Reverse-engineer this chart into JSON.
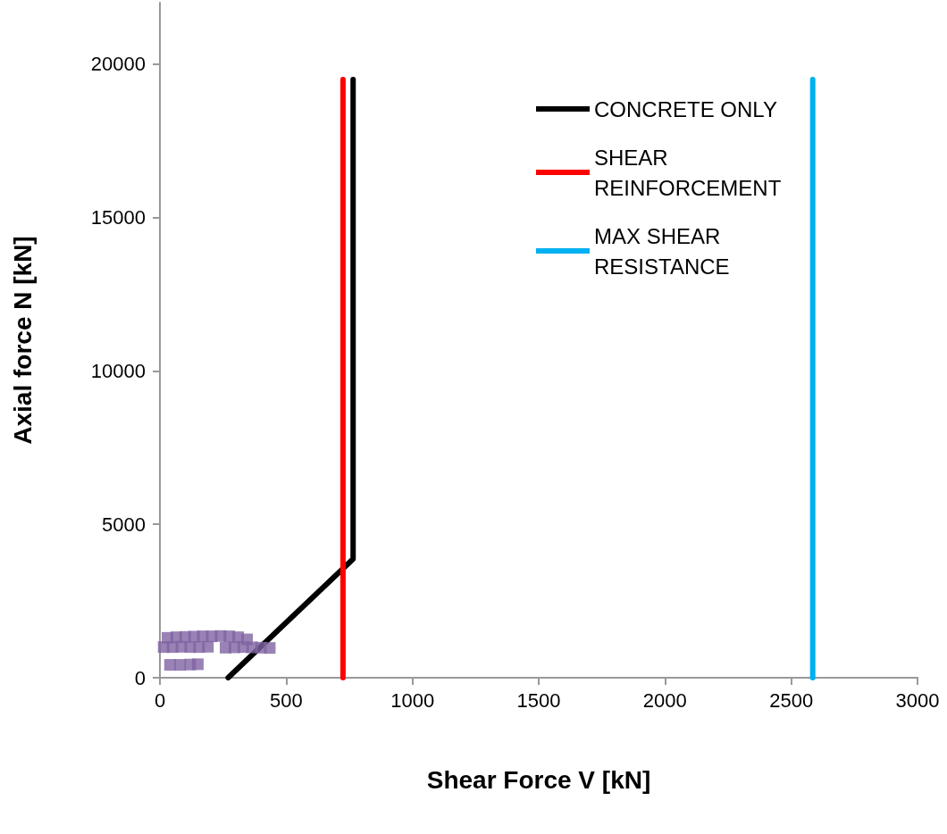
{
  "chart_data": {
    "type": "line",
    "xlabel": "Shear Force V [kN]",
    "ylabel": "Axial force N [kN]",
    "xlim": [
      0,
      3000
    ],
    "xticks": [
      0,
      500,
      1000,
      1500,
      2000,
      2500,
      3000
    ],
    "ylim": [
      0,
      22000
    ],
    "yticks": [
      0,
      5000,
      10000,
      15000,
      20000
    ],
    "grid": false,
    "legend": "top right",
    "marker": "none",
    "line_style": "solid",
    "series": [
      {
        "name": "CONCRETE ONLY",
        "color": "#000000",
        "x": [
          270,
          765,
          765
        ],
        "values": [
          0,
          3870,
          19500
        ]
      },
      {
        "name": "SHEAR REINFORCEMENT",
        "color": "#ff0000",
        "x": [
          725,
          725
        ],
        "values": [
          0,
          19500
        ]
      },
      {
        "name": "MAX SHEAR RESISTANCE",
        "color": "#00b0f0",
        "x": [
          2585,
          2585
        ],
        "values": [
          0,
          19500
        ]
      },
      {
        "type": "scatter",
        "marker": "square",
        "color": "#8064a2",
        "x": [
          30,
          65,
          100,
          135,
          170,
          205,
          240,
          275,
          310,
          345,
          15,
          50,
          85,
          120,
          155,
          190,
          260,
          295,
          330,
          365,
          400,
          435,
          40,
          80,
          120,
          150
        ],
        "values": [
          1300,
          1320,
          1330,
          1340,
          1350,
          1350,
          1360,
          1350,
          1320,
          1250,
          1000,
          1000,
          1010,
          1000,
          1000,
          1010,
          980,
          990,
          1000,
          990,
          980,
          970,
          420,
          420,
          430,
          440
        ]
      }
    ]
  }
}
